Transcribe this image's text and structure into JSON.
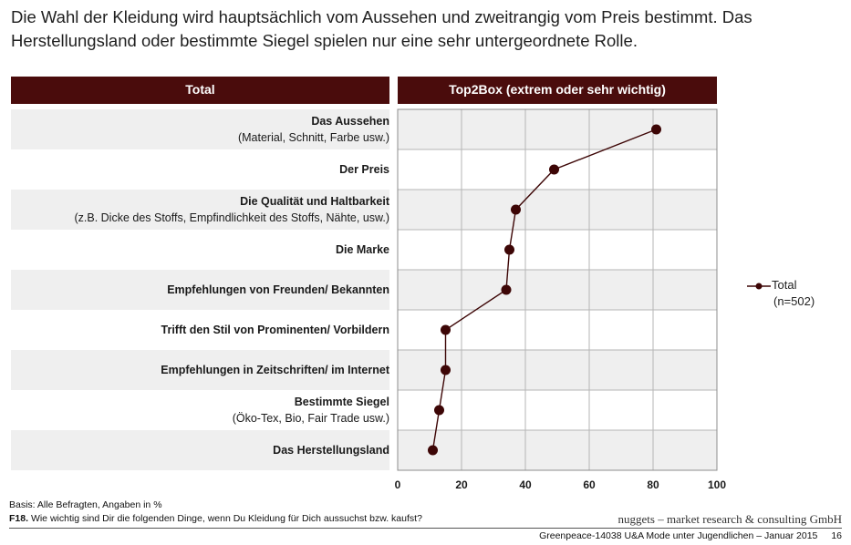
{
  "headline": "Die Wahl der Kleidung wird hauptsächlich vom Aussehen und zweitrangig vom Preis bestimmt. Das Herstellungsland oder bestimmte Siegel spielen nur eine sehr untergeordnete Rolle.",
  "header_left": "Total",
  "header_right": "Top2Box (extrem oder sehr wichtig)",
  "chart_data": {
    "type": "line",
    "orientation": "horizontal",
    "title": "Top2Box (extrem oder sehr wichtig)",
    "categories": [
      {
        "label": "Das Aussehen",
        "sub": "(Material, Schnitt, Farbe usw.)"
      },
      {
        "label": "Der Preis",
        "sub": ""
      },
      {
        "label": "Die Qualität und Haltbarkeit",
        "sub": "(z.B. Dicke des Stoffs, Empfindlichkeit des Stoffs, Nähte, usw.)"
      },
      {
        "label": "Die Marke",
        "sub": ""
      },
      {
        "label": "Empfehlungen von Freunden/ Bekannten",
        "sub": ""
      },
      {
        "label": "Trifft den Stil von Prominenten/ Vorbildern",
        "sub": ""
      },
      {
        "label": "Empfehlungen in Zeitschriften/ im Internet",
        "sub": ""
      },
      {
        "label": "Bestimmte Siegel",
        "sub": "(Öko-Tex, Bio, Fair Trade usw.)"
      },
      {
        "label": "Das Herstellungsland",
        "sub": ""
      }
    ],
    "series": [
      {
        "name": "Total",
        "values": [
          81,
          49,
          37,
          35,
          34,
          15,
          15,
          13,
          11
        ]
      }
    ],
    "xlim": [
      0,
      100
    ],
    "xticks": [
      "0",
      "20",
      "40",
      "60",
      "80",
      "100"
    ],
    "grid": true,
    "legend_position": "right",
    "color": "#3d0606"
  },
  "legend": {
    "name": "Total",
    "n": "(n=502)"
  },
  "footer": {
    "basis": "Basis: Alle Befragten, Angaben in %",
    "question_code": "F18.",
    "question": "Wie wichtig sind Dir die folgenden Dinge, wenn Du Kleidung für Dich aussuchst bzw. kaufst?",
    "company": "nuggets – market research & consulting GmbH",
    "study": "Greenpeace-14038 U&A Mode unter Jugendlichen – Januar 2015",
    "page": "16"
  }
}
